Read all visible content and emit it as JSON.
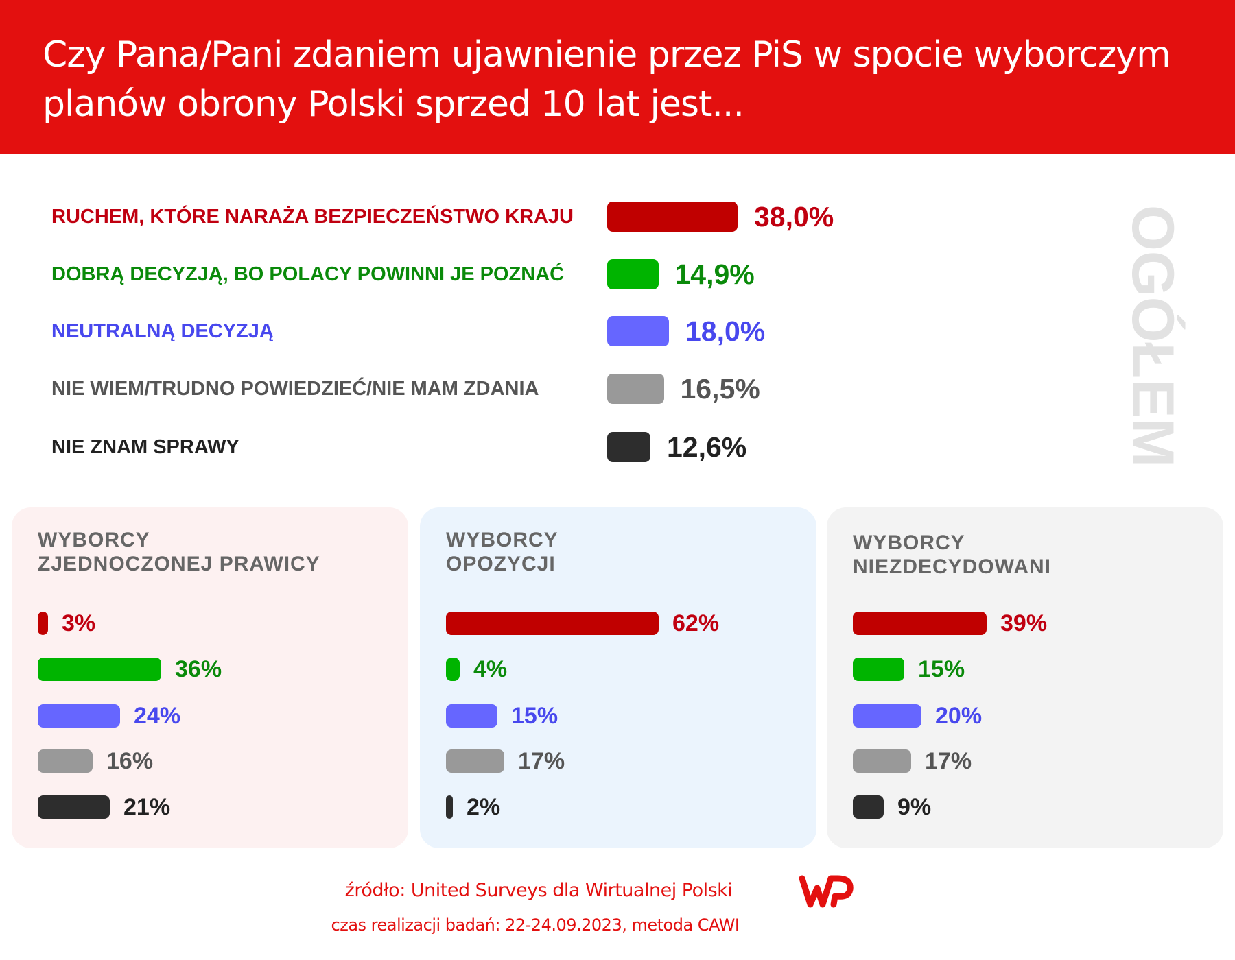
{
  "title": "Czy Pana/Pani zdaniem ujawnienie przez PiS w spocie wyborczym planów obrony Polski sprzed 10 lat jest...",
  "side_label": "OGÓŁEM",
  "colors": {
    "header": "#e3100f",
    "series": [
      "#c00000",
      "#00b400",
      "#6666ff",
      "#999999",
      "#2d2d2d"
    ],
    "text": [
      "#c00010",
      "#0a8a0a",
      "#4848ee",
      "#555555",
      "#222222"
    ]
  },
  "chart_data": [
    {
      "type": "bar",
      "title": "OGÓŁEM",
      "categories": [
        "RUCHEM, KTÓRE NARAŻA BEZPIECZEŃSTWO KRAJU",
        "DOBRĄ DECYZJĄ, BO POLACY POWINNI JE POZNAĆ",
        "NEUTRALNĄ DECYZJĄ",
        "NIE WIEM/TRUDNO POWIEDZIEĆ/NIE MAM ZDANIA",
        "NIE ZNAM SPRAWY"
      ],
      "values": [
        38.0,
        14.9,
        18.0,
        16.5,
        12.6
      ],
      "labels": [
        "38,0%",
        "14,9%",
        "18,0%",
        "16,5%",
        "12,6%"
      ]
    },
    {
      "type": "bar",
      "title": "WYBORCY ZJEDNOCZONEJ PRAWICY",
      "title_lines": [
        "WYBORCY",
        "ZJEDNOCZONEJ PRAWICY"
      ],
      "values": [
        3,
        36,
        24,
        16,
        21
      ],
      "labels": [
        "3%",
        "36%",
        "24%",
        "16%",
        "21%"
      ],
      "background": "#fdf1f1"
    },
    {
      "type": "bar",
      "title": "WYBORCY OPOZYCJI",
      "title_lines": [
        "WYBORCY",
        "OPOZYCJI"
      ],
      "values": [
        62,
        4,
        15,
        17,
        2
      ],
      "labels": [
        "62%",
        "4%",
        "15%",
        "17%",
        "2%"
      ],
      "background": "#ebf4fd"
    },
    {
      "type": "bar",
      "title": "WYBORCY NIEZDECYDOWANI",
      "title_lines": [
        "WYBORCY",
        "NIEZDECYDOWANI"
      ],
      "values": [
        39,
        15,
        20,
        17,
        9
      ],
      "labels": [
        "39%",
        "15%",
        "20%",
        "17%",
        "9%"
      ],
      "background": "#f3f3f3"
    }
  ],
  "footer": {
    "source": "źródło: United Surveys dla Wirtualnej Polski",
    "logo": "WP",
    "time": "czas realizacji badań: 22-24.09.2023, metoda CAWI"
  }
}
